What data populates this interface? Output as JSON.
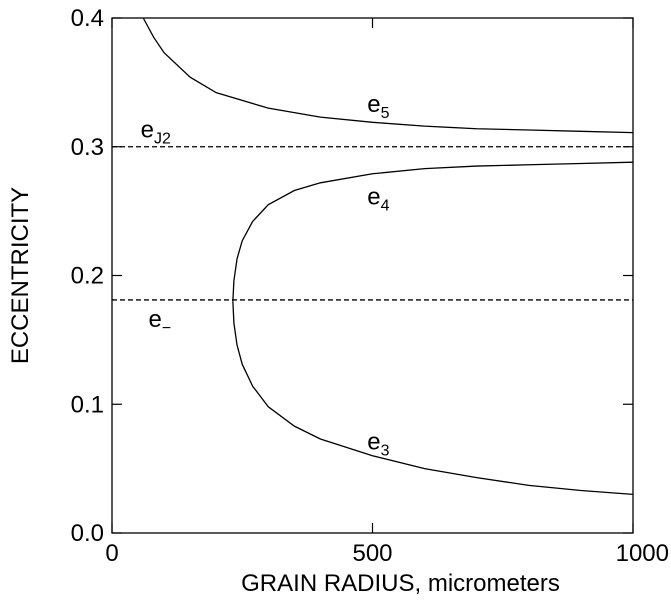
{
  "chart_data": {
    "type": "line",
    "xlabel": "GRAIN  RADIUS,  micrometers",
    "ylabel": "ECCENTRICITY",
    "xlim": [
      0,
      1000
    ],
    "ylim": [
      0,
      0.4
    ],
    "x_ticks": [
      "0",
      "500",
      "1000"
    ],
    "y_ticks": [
      "0.0",
      "0.1",
      "0.2",
      "0.3",
      "0.4"
    ],
    "grid": false,
    "series": [
      {
        "name": "e5",
        "style": "solid",
        "label_main": "e",
        "label_sub": "5",
        "points": [
          [
            60,
            0.4
          ],
          [
            80,
            0.385
          ],
          [
            100,
            0.373
          ],
          [
            150,
            0.354
          ],
          [
            200,
            0.342
          ],
          [
            300,
            0.33
          ],
          [
            400,
            0.323
          ],
          [
            500,
            0.319
          ],
          [
            600,
            0.316
          ],
          [
            700,
            0.314
          ],
          [
            800,
            0.313
          ],
          [
            900,
            0.312
          ],
          [
            1000,
            0.311
          ]
        ]
      },
      {
        "name": "eJ2",
        "style": "dashed",
        "label_main": "e",
        "label_sub": "J2",
        "points": [
          [
            0,
            0.3
          ],
          [
            1000,
            0.3
          ]
        ]
      },
      {
        "name": "e4",
        "style": "solid",
        "label_main": "e",
        "label_sub": "4",
        "points": [
          [
            232,
            0.18
          ],
          [
            234,
            0.196
          ],
          [
            240,
            0.213
          ],
          [
            250,
            0.227
          ],
          [
            270,
            0.242
          ],
          [
            300,
            0.255
          ],
          [
            350,
            0.266
          ],
          [
            400,
            0.272
          ],
          [
            500,
            0.279
          ],
          [
            600,
            0.283
          ],
          [
            700,
            0.285
          ],
          [
            800,
            0.286
          ],
          [
            900,
            0.287
          ],
          [
            1000,
            0.288
          ]
        ]
      },
      {
        "name": "e-",
        "style": "dashed",
        "label_main": "e",
        "label_sub": "−",
        "points": [
          [
            0,
            0.181
          ],
          [
            1000,
            0.181
          ]
        ]
      },
      {
        "name": "e3",
        "style": "solid",
        "label_main": "e",
        "label_sub": "3",
        "points": [
          [
            232,
            0.18
          ],
          [
            234,
            0.163
          ],
          [
            240,
            0.146
          ],
          [
            250,
            0.131
          ],
          [
            270,
            0.114
          ],
          [
            300,
            0.098
          ],
          [
            350,
            0.083
          ],
          [
            400,
            0.073
          ],
          [
            500,
            0.06
          ],
          [
            600,
            0.05
          ],
          [
            700,
            0.043
          ],
          [
            800,
            0.037
          ],
          [
            900,
            0.033
          ],
          [
            1000,
            0.03
          ]
        ]
      }
    ],
    "annotations": [
      {
        "series": "e5",
        "x": 490,
        "y": 0.327
      },
      {
        "series": "eJ2",
        "x": 55,
        "y": 0.307
      },
      {
        "series": "e4",
        "x": 490,
        "y": 0.255
      },
      {
        "series": "e-",
        "x": 70,
        "y": 0.16
      },
      {
        "series": "e3",
        "x": 490,
        "y": 0.065
      }
    ]
  }
}
